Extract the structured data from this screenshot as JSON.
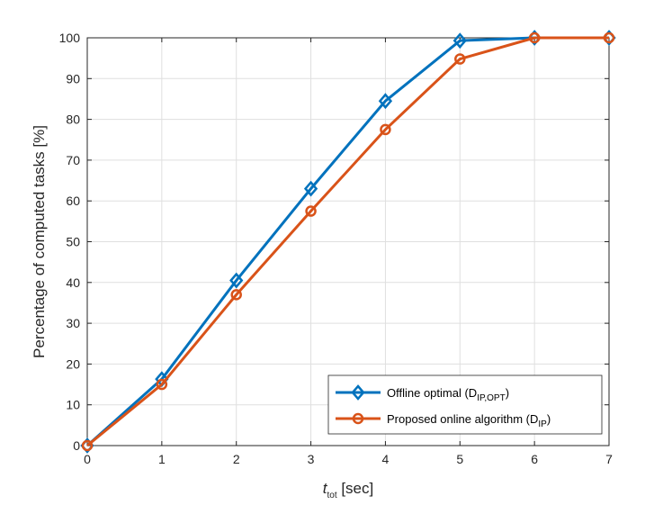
{
  "chart_data": {
    "type": "line",
    "title": "",
    "xlabel": {
      "main": "t",
      "sub": "tot",
      "unit": " [sec]"
    },
    "ylabel": "Percentage of computed tasks [%]",
    "xlim": [
      0,
      7
    ],
    "ylim": [
      0,
      100
    ],
    "xticks": [
      0,
      1,
      2,
      3,
      4,
      5,
      6,
      7
    ],
    "yticks": [
      0,
      10,
      20,
      30,
      40,
      50,
      60,
      70,
      80,
      90,
      100
    ],
    "grid": true,
    "legend_position": "bottom-right",
    "x": [
      0,
      1,
      2,
      3,
      4,
      5,
      6,
      7
    ],
    "series": [
      {
        "name": "Offline optimal (D",
        "name_sub": "IP,OPT",
        "name_end": ")",
        "marker": "diamond",
        "color": "#0072BD",
        "values": [
          0,
          16.3,
          40.5,
          63.0,
          84.5,
          99.3,
          100,
          100
        ]
      },
      {
        "name": "Proposed online algorithm (D",
        "name_sub": "IP",
        "name_end": ")",
        "marker": "circle",
        "color": "#D95319",
        "values": [
          0,
          15.0,
          37.0,
          57.5,
          77.5,
          94.8,
          100,
          100
        ]
      }
    ]
  }
}
